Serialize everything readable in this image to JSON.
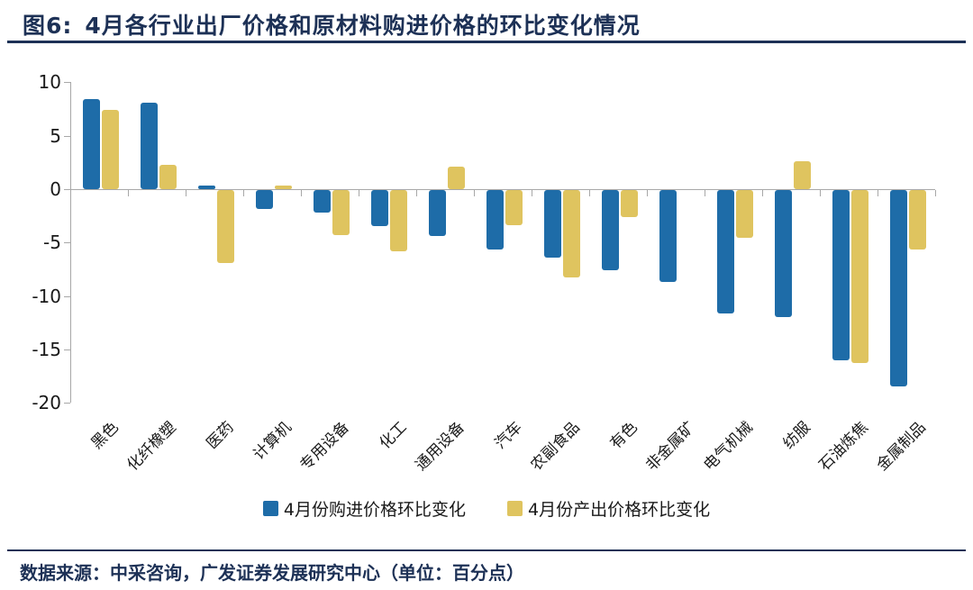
{
  "title": {
    "figure_label": "图6:",
    "text": "4月各行业出厂价格和原材料购进价格的环比变化情况"
  },
  "chart_data": {
    "type": "bar",
    "title": "4月各行业出厂价格和原材料购进价格的环比变化情况",
    "categories": [
      "黑色",
      "化纤橡塑",
      "医药",
      "计算机",
      "专用设备",
      "化工",
      "通用设备",
      "汽车",
      "农副食品",
      "有色",
      "非金属矿",
      "电气机械",
      "纺服",
      "石油炼焦",
      "金属制品"
    ],
    "series": [
      {
        "name": "4月份购进价格环比变化",
        "color": "#1e6ca8",
        "values": [
          8.4,
          8.1,
          0.3,
          -1.8,
          -2.1,
          -3.4,
          -4.3,
          -5.6,
          -6.3,
          -7.5,
          -8.6,
          -11.5,
          -11.9,
          -15.9,
          -18.4
        ]
      },
      {
        "name": "4月份产出价格环比变化",
        "color": "#dfc45f",
        "values": [
          7.4,
          2.3,
          -6.8,
          0.3,
          -4.2,
          -5.7,
          2.1,
          -3.3,
          -8.2,
          -2.5,
          0,
          -4.5,
          2.6,
          -16.2,
          -5.6
        ]
      }
    ],
    "xlabel": "",
    "ylabel": "",
    "ylim": [
      -20,
      10
    ],
    "yticks": [
      10,
      5,
      0,
      -5,
      -10,
      -15,
      -20
    ],
    "grid": false,
    "legend_position": "bottom"
  },
  "footer": {
    "source_text": "数据来源：中采咨询，广发证券发展研究中心（单位：百分点）"
  },
  "colors": {
    "accent_navy": "#1d3156",
    "bar_blue": "#1e6ca8",
    "bar_yellow": "#dfc45f",
    "axis_gray": "#a8a8a8"
  }
}
